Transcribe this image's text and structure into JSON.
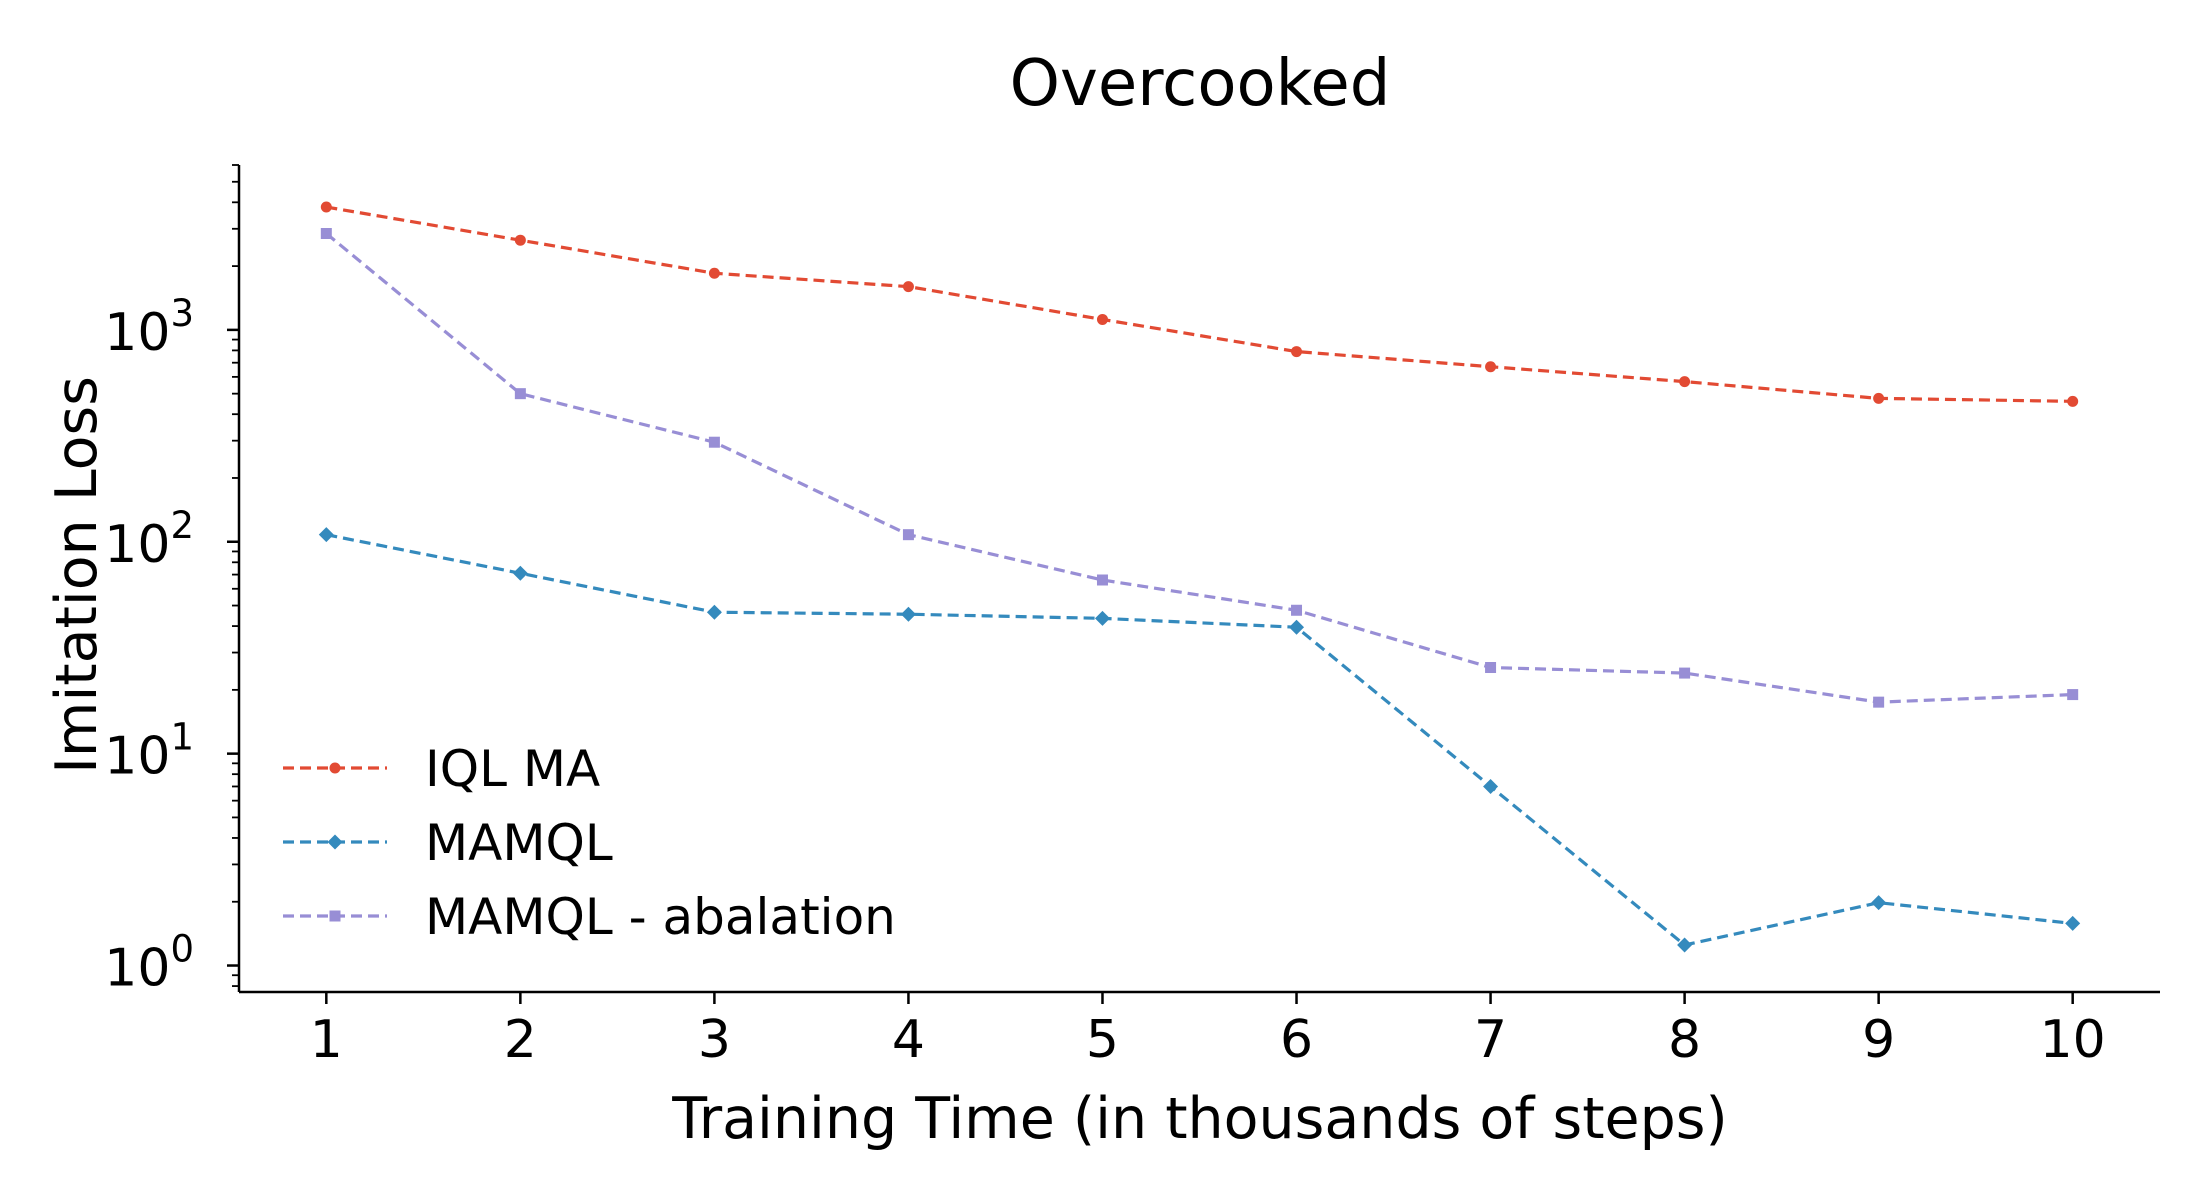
{
  "chart_data": {
    "type": "line",
    "title": "Overcooked",
    "xlabel": "Training Time (in thousands of steps)",
    "ylabel": "Imitation Loss",
    "yscale": "log",
    "ylim": [
      0.75,
      6000
    ],
    "xlim": [
      0.55,
      10.45
    ],
    "grid": false,
    "legend_position": "lower-left",
    "x": [
      1,
      2,
      3,
      4,
      5,
      6,
      7,
      8,
      9,
      10
    ],
    "x_ticks": [
      "1",
      "2",
      "3",
      "4",
      "5",
      "6",
      "7",
      "8",
      "9",
      "10"
    ],
    "y_ticks": [
      {
        "value": 1,
        "base": "10",
        "exp": "0"
      },
      {
        "value": 10,
        "base": "10",
        "exp": "1"
      },
      {
        "value": 100,
        "base": "10",
        "exp": "2"
      },
      {
        "value": 1000,
        "base": "10",
        "exp": "3"
      }
    ],
    "series": [
      {
        "name": "IQL MA",
        "color": "#e24a33",
        "marker": "circle",
        "values": [
          3800,
          2650,
          1850,
          1600,
          1120,
          790,
          670,
          570,
          475,
          460
        ]
      },
      {
        "name": "MAMQL",
        "color": "#348abd",
        "marker": "diamond",
        "values": [
          108,
          71,
          46.5,
          45.5,
          43.5,
          39.5,
          7.0,
          1.25,
          1.98,
          1.58
        ]
      },
      {
        "name": "MAMQL - abalation",
        "color": "#988ed5",
        "marker": "square",
        "values": [
          2850,
          500,
          295,
          108,
          66,
          47.5,
          25.5,
          24,
          17.5,
          19
        ]
      }
    ]
  }
}
